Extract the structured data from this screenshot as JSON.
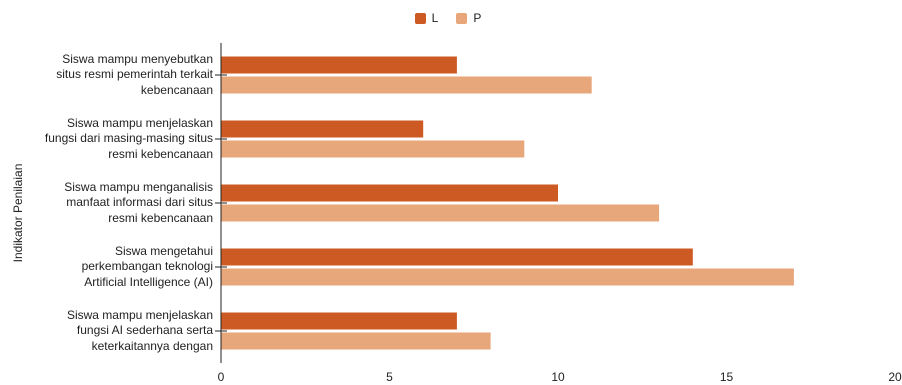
{
  "chart_data": {
    "type": "bar",
    "orientation": "horizontal",
    "ylabel": "Indikator Penilaian",
    "categories": [
      [
        "Siswa mampu menyebutkan",
        "situs resmi pemerintah terkait",
        "kebencanaan"
      ],
      [
        "Siswa mampu menjelaskan",
        "fungsi dari masing-masing situs",
        "resmi kebencanaan"
      ],
      [
        "Siswa mampu menganalisis",
        "manfaat informasi dari situs",
        "resmi kebencanaan"
      ],
      [
        "Siswa mengetahui",
        "perkembangan teknologi",
        "Artificial Intelligence (AI)"
      ],
      [
        "Siswa mampu menjelaskan",
        "fungsi AI sederhana serta",
        "keterkaitannya dengan"
      ]
    ],
    "series": [
      {
        "name": "L",
        "color": "#cc5a22",
        "values": [
          7,
          6,
          10,
          14,
          7
        ]
      },
      {
        "name": "P",
        "color": "#e8a77a",
        "values": [
          11,
          9,
          13,
          17,
          8
        ]
      }
    ],
    "xlim": [
      0,
      20
    ],
    "xticks": [
      "0",
      "5",
      "10",
      "15",
      "20"
    ],
    "grid": false,
    "legend_position": "top"
  }
}
